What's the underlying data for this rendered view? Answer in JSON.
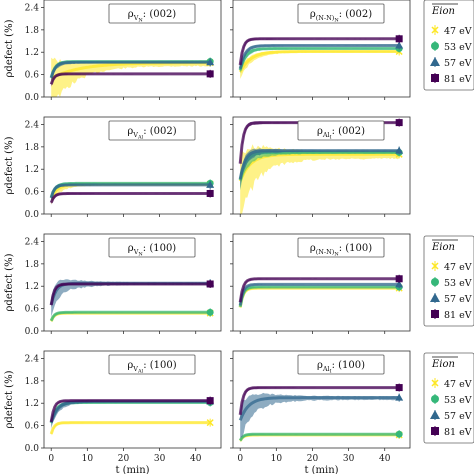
{
  "figure": {
    "ylabel": "ρdefect (%)",
    "xlabel": "t (min)",
    "legend_title": "Eion",
    "legend_entries": [
      "47 eV",
      "53 eV",
      "57 eV",
      "81 eV"
    ],
    "colors": {
      "47 eV": "#fde725",
      "53 eV": "#35b779",
      "57 eV": "#31688e",
      "81 eV": "#440154"
    }
  },
  "chart_data": [
    {
      "type": "line",
      "panel": "row1-left",
      "title": "ρVN: (002)",
      "xlim": [
        -2,
        47
      ],
      "ylim": [
        0,
        2.6
      ],
      "xticks": [
        0,
        10,
        20,
        30,
        40
      ],
      "yticks": [
        0.0,
        0.6,
        1.2,
        1.8,
        2.4
      ],
      "series": [
        {
          "name": "47 eV",
          "final": 0.92,
          "rise": 0.8,
          "band": 0.45
        },
        {
          "name": "53 eV",
          "final": 0.95,
          "rise": 0.08,
          "band": 0.05
        },
        {
          "name": "57 eV",
          "final": 0.93,
          "rise": 0.08,
          "band": 0.05
        },
        {
          "name": "81 eV",
          "final": 0.62,
          "rise": 0.05,
          "band": 0.03
        }
      ]
    },
    {
      "type": "line",
      "panel": "row1-right",
      "title": "ρ(N-N)N: (002)",
      "xlim": [
        -2,
        47
      ],
      "ylim": [
        0,
        2.6
      ],
      "xticks": [
        0,
        10,
        20,
        30,
        40
      ],
      "yticks": [
        0.0,
        0.6,
        1.2,
        1.8,
        2.4
      ],
      "series": [
        {
          "name": "47 eV",
          "final": 1.22,
          "rise": 0.25,
          "band": 0.1
        },
        {
          "name": "53 eV",
          "final": 1.3,
          "rise": 0.12,
          "band": 0.05
        },
        {
          "name": "57 eV",
          "final": 1.38,
          "rise": 0.1,
          "band": 0.04
        },
        {
          "name": "81 eV",
          "final": 1.56,
          "rise": 0.05,
          "band": 0.03
        }
      ]
    },
    {
      "type": "line",
      "panel": "row2-left",
      "title": "ρVAl: (002)",
      "xlim": [
        -2,
        47
      ],
      "ylim": [
        0,
        2.6
      ],
      "xticks": [
        0,
        10,
        20,
        30,
        40
      ],
      "yticks": [
        0.0,
        0.6,
        1.2,
        1.8,
        2.4
      ],
      "series": [
        {
          "name": "47 eV",
          "final": 0.8,
          "rise": 0.15,
          "band": 0.1
        },
        {
          "name": "53 eV",
          "final": 0.82,
          "rise": 0.08,
          "band": 0.05
        },
        {
          "name": "57 eV",
          "final": 0.78,
          "rise": 0.05,
          "band": 0.04
        },
        {
          "name": "81 eV",
          "final": 0.55,
          "rise": 0.05,
          "band": 0.03
        }
      ]
    },
    {
      "type": "line",
      "panel": "row2-right",
      "title": "ρAlI: (002)",
      "xlim": [
        -2,
        47
      ],
      "ylim": [
        0,
        2.6
      ],
      "xticks": [
        0,
        10,
        20,
        30,
        40
      ],
      "yticks": [
        0.0,
        0.6,
        1.2,
        1.8,
        2.4
      ],
      "series": [
        {
          "name": "47 eV",
          "final": 1.6,
          "rise": 0.25,
          "band": 0.6
        },
        {
          "name": "53 eV",
          "final": 1.65,
          "rise": 0.12,
          "band": 0.15
        },
        {
          "name": "57 eV",
          "final": 1.7,
          "rise": 0.1,
          "band": 0.12
        },
        {
          "name": "81 eV",
          "final": 2.45,
          "rise": 0.05,
          "band": 0.05
        }
      ]
    },
    {
      "type": "line",
      "panel": "row3-left",
      "title": "ρVN: (100)",
      "xlim": [
        -2,
        47
      ],
      "ylim": [
        0,
        2.6
      ],
      "xticks": [
        0,
        10,
        20,
        30,
        40
      ],
      "yticks": [
        0.0,
        0.6,
        1.2,
        1.8,
        2.4
      ],
      "series": [
        {
          "name": "47 eV",
          "final": 0.48,
          "rise": 0.05,
          "band": 0.02
        },
        {
          "name": "53 eV",
          "final": 0.5,
          "rise": 0.05,
          "band": 0.02
        },
        {
          "name": "57 eV",
          "final": 1.28,
          "rise": 0.1,
          "band": 0.2
        },
        {
          "name": "81 eV",
          "final": 1.26,
          "rise": 0.05,
          "band": 0.03
        }
      ]
    },
    {
      "type": "line",
      "panel": "row3-right",
      "title": "ρ(N-N)N: (100)",
      "xlim": [
        -2,
        47
      ],
      "ylim": [
        0,
        2.6
      ],
      "xticks": [
        0,
        10,
        20,
        30,
        40
      ],
      "yticks": [
        0.0,
        0.6,
        1.2,
        1.8,
        2.4
      ],
      "series": [
        {
          "name": "47 eV",
          "final": 1.15,
          "rise": 0.05,
          "band": 0.02
        },
        {
          "name": "53 eV",
          "final": 1.18,
          "rise": 0.05,
          "band": 0.02
        },
        {
          "name": "57 eV",
          "final": 1.25,
          "rise": 0.05,
          "band": 0.02
        },
        {
          "name": "81 eV",
          "final": 1.4,
          "rise": 0.05,
          "band": 0.02
        }
      ]
    },
    {
      "type": "line",
      "panel": "row4-left",
      "title": "ρVAl: (100)",
      "xlim": [
        -2,
        47
      ],
      "ylim": [
        0,
        2.6
      ],
      "xticks": [
        0,
        10,
        20,
        30,
        40
      ],
      "yticks": [
        0.0,
        0.6,
        1.2,
        1.8,
        2.4
      ],
      "series": [
        {
          "name": "47 eV",
          "final": 0.68,
          "rise": 0.05,
          "band": 0.02
        },
        {
          "name": "53 eV",
          "final": 1.22,
          "rise": 0.1,
          "band": 0.05
        },
        {
          "name": "57 eV",
          "final": 1.25,
          "rise": 0.15,
          "band": 0.08
        },
        {
          "name": "81 eV",
          "final": 1.27,
          "rise": 0.05,
          "band": 0.02
        }
      ]
    },
    {
      "type": "line",
      "panel": "row4-right",
      "title": "ρAlI: (100)",
      "xlim": [
        -2,
        47
      ],
      "ylim": [
        0,
        2.6
      ],
      "xticks": [
        0,
        10,
        20,
        30,
        40
      ],
      "yticks": [
        0.0,
        0.6,
        1.2,
        1.8,
        2.4
      ],
      "series": [
        {
          "name": "47 eV",
          "final": 0.35,
          "rise": 0.05,
          "band": 0.02
        },
        {
          "name": "53 eV",
          "final": 0.37,
          "rise": 0.05,
          "band": 0.02
        },
        {
          "name": "57 eV",
          "final": 1.35,
          "rise": 0.2,
          "band": 0.3
        },
        {
          "name": "81 eV",
          "final": 1.62,
          "rise": 0.05,
          "band": 0.03
        }
      ]
    }
  ]
}
